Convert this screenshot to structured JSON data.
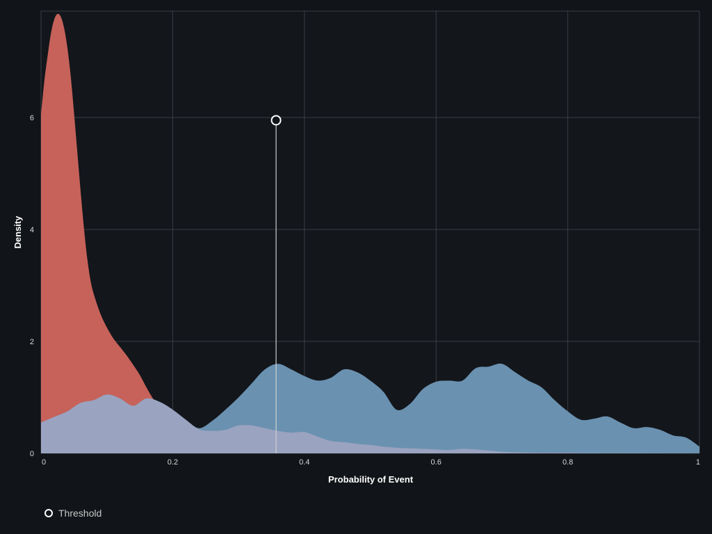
{
  "chart_data": {
    "type": "area",
    "xlabel": "Probability of Event",
    "ylabel": "Density",
    "xlim": [
      0,
      1
    ],
    "ylim": [
      0,
      7.9
    ],
    "x_ticks": [
      0,
      0.2,
      0.4,
      0.6,
      0.8,
      1
    ],
    "x_tick_labels": [
      "0",
      "0.2",
      "0.4",
      "0.6",
      "0.8",
      "1"
    ],
    "y_ticks": [
      0,
      2,
      4,
      6
    ],
    "y_tick_labels": [
      "0",
      "2",
      "4",
      "6"
    ],
    "grid": true,
    "legend": {
      "placement": "bottom-left",
      "items": [
        {
          "label": "Threshold"
        }
      ]
    },
    "threshold": {
      "x": 0.357,
      "y": 5.95
    },
    "series": [
      {
        "color": "#c6625a",
        "points": [
          [
            0,
            6.05
          ],
          [
            0.005,
            6.65
          ],
          [
            0.01,
            7.1
          ],
          [
            0.015,
            7.5
          ],
          [
            0.02,
            7.75
          ],
          [
            0.025,
            7.85
          ],
          [
            0.03,
            7.8
          ],
          [
            0.035,
            7.6
          ],
          [
            0.04,
            7.25
          ],
          [
            0.045,
            6.75
          ],
          [
            0.05,
            6.1
          ],
          [
            0.055,
            5.4
          ],
          [
            0.06,
            4.7
          ],
          [
            0.065,
            4.05
          ],
          [
            0.07,
            3.5
          ],
          [
            0.075,
            3.1
          ],
          [
            0.08,
            2.85
          ],
          [
            0.09,
            2.5
          ],
          [
            0.1,
            2.25
          ],
          [
            0.11,
            2.05
          ],
          [
            0.12,
            1.9
          ],
          [
            0.13,
            1.75
          ],
          [
            0.14,
            1.58
          ],
          [
            0.15,
            1.4
          ],
          [
            0.16,
            1.18
          ],
          [
            0.17,
            0.98
          ],
          [
            0.18,
            0.83
          ],
          [
            0.19,
            0.72
          ],
          [
            0.2,
            0.63
          ],
          [
            0.21,
            0.55
          ],
          [
            0.22,
            0.48
          ],
          [
            0.23,
            0.43
          ],
          [
            0.24,
            0.41
          ],
          [
            0.25,
            0.38
          ],
          [
            0.26,
            0.32
          ],
          [
            0.3,
            0.2
          ],
          [
            0.35,
            0.12
          ],
          [
            0.4,
            0.08
          ],
          [
            0.5,
            0.05
          ],
          [
            0.6,
            0.03
          ],
          [
            0.7,
            0.02
          ],
          [
            0.8,
            0.01
          ],
          [
            0.9,
            0.005
          ],
          [
            1,
            0
          ]
        ]
      },
      {
        "color": "#6a91b0",
        "points": [
          [
            0,
            0.55
          ],
          [
            0.02,
            0.65
          ],
          [
            0.04,
            0.75
          ],
          [
            0.06,
            0.9
          ],
          [
            0.08,
            0.95
          ],
          [
            0.1,
            1.05
          ],
          [
            0.12,
            0.98
          ],
          [
            0.14,
            0.85
          ],
          [
            0.16,
            0.98
          ],
          [
            0.18,
            0.92
          ],
          [
            0.2,
            0.78
          ],
          [
            0.22,
            0.6
          ],
          [
            0.24,
            0.45
          ],
          [
            0.26,
            0.58
          ],
          [
            0.28,
            0.78
          ],
          [
            0.3,
            1.0
          ],
          [
            0.32,
            1.25
          ],
          [
            0.34,
            1.5
          ],
          [
            0.36,
            1.6
          ],
          [
            0.38,
            1.5
          ],
          [
            0.4,
            1.38
          ],
          [
            0.42,
            1.3
          ],
          [
            0.44,
            1.35
          ],
          [
            0.46,
            1.5
          ],
          [
            0.48,
            1.45
          ],
          [
            0.5,
            1.3
          ],
          [
            0.52,
            1.1
          ],
          [
            0.54,
            0.78
          ],
          [
            0.56,
            0.88
          ],
          [
            0.58,
            1.15
          ],
          [
            0.6,
            1.28
          ],
          [
            0.62,
            1.3
          ],
          [
            0.64,
            1.3
          ],
          [
            0.66,
            1.52
          ],
          [
            0.68,
            1.55
          ],
          [
            0.7,
            1.6
          ],
          [
            0.72,
            1.45
          ],
          [
            0.74,
            1.3
          ],
          [
            0.76,
            1.18
          ],
          [
            0.78,
            0.95
          ],
          [
            0.8,
            0.75
          ],
          [
            0.82,
            0.6
          ],
          [
            0.84,
            0.62
          ],
          [
            0.86,
            0.66
          ],
          [
            0.88,
            0.55
          ],
          [
            0.9,
            0.45
          ],
          [
            0.92,
            0.47
          ],
          [
            0.94,
            0.42
          ],
          [
            0.96,
            0.32
          ],
          [
            0.98,
            0.28
          ],
          [
            1,
            0.12
          ]
        ]
      },
      {
        "color": "#9aa3c0",
        "points": [
          [
            0,
            0.55
          ],
          [
            0.02,
            0.65
          ],
          [
            0.04,
            0.75
          ],
          [
            0.06,
            0.9
          ],
          [
            0.08,
            0.95
          ],
          [
            0.1,
            1.05
          ],
          [
            0.12,
            0.98
          ],
          [
            0.14,
            0.85
          ],
          [
            0.16,
            0.98
          ],
          [
            0.18,
            0.92
          ],
          [
            0.2,
            0.78
          ],
          [
            0.22,
            0.6
          ],
          [
            0.24,
            0.43
          ],
          [
            0.26,
            0.4
          ],
          [
            0.28,
            0.42
          ],
          [
            0.3,
            0.5
          ],
          [
            0.32,
            0.5
          ],
          [
            0.34,
            0.45
          ],
          [
            0.36,
            0.4
          ],
          [
            0.38,
            0.37
          ],
          [
            0.4,
            0.38
          ],
          [
            0.42,
            0.3
          ],
          [
            0.44,
            0.22
          ],
          [
            0.46,
            0.2
          ],
          [
            0.48,
            0.17
          ],
          [
            0.5,
            0.15
          ],
          [
            0.52,
            0.12
          ],
          [
            0.54,
            0.1
          ],
          [
            0.56,
            0.09
          ],
          [
            0.58,
            0.08
          ],
          [
            0.6,
            0.07
          ],
          [
            0.62,
            0.06
          ],
          [
            0.64,
            0.08
          ],
          [
            0.66,
            0.07
          ],
          [
            0.68,
            0.05
          ],
          [
            0.7,
            0.03
          ],
          [
            0.72,
            0.02
          ],
          [
            0.76,
            0.01
          ],
          [
            0.8,
            0.01
          ],
          [
            0.9,
            0.005
          ],
          [
            1,
            0
          ]
        ]
      }
    ]
  }
}
